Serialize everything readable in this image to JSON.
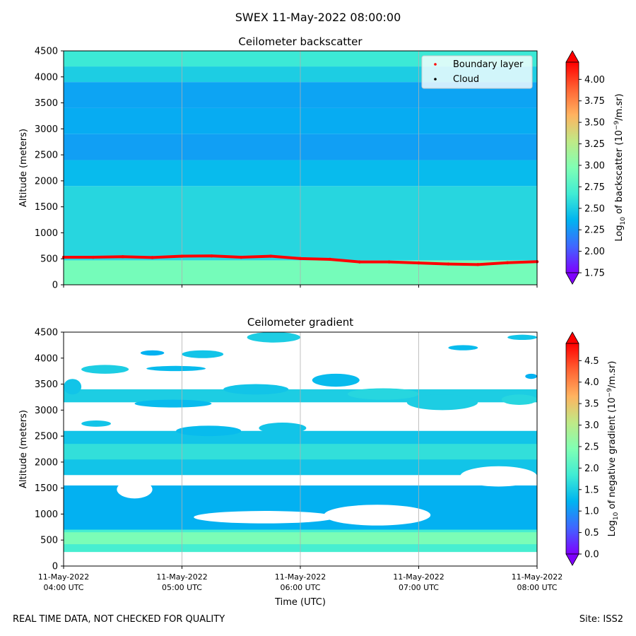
{
  "suptitle": "SWEX 11-May-2022 08:00:00",
  "footer": {
    "left": "REAL TIME DATA, NOT CHECKED FOR QUALITY",
    "right": "Site: ISS2"
  },
  "colors": {
    "rainbow_stops": [
      "#7f00ff",
      "#4066ff",
      "#00b4f0",
      "#40ecd4",
      "#80ffb4",
      "#c0e986",
      "#ffb360",
      "#ff6232",
      "#ff0000"
    ],
    "boundary_layer": "#ff0000",
    "cloud": "#000000",
    "grid": "#b0b0b0"
  },
  "chart_data": [
    {
      "type": "heatmap",
      "title": "Ceilometer backscatter",
      "ylabel": "Altitude (meters)",
      "ylim": [
        0,
        4500
      ],
      "yticks": [
        "0",
        "500",
        "1000",
        "1500",
        "2000",
        "2500",
        "3000",
        "3500",
        "4000",
        "4500"
      ],
      "xlim": [
        0,
        4
      ],
      "colorbar": {
        "label_pre": "Log",
        "label_sub": "10",
        "label_post": " of backscatter (10",
        "label_sup": "−9",
        "label_end": "/m.sr)",
        "vmin": 1.75,
        "vmax": 4.2,
        "ticks": [
          "1.75",
          "2.00",
          "2.25",
          "2.50",
          "2.75",
          "3.00",
          "3.25",
          "3.50",
          "3.75",
          "4.00"
        ]
      },
      "legend": {
        "position": "top-right",
        "entries": [
          "Boundary layer",
          "Cloud"
        ]
      },
      "boundary_layer": {
        "x": [
          0,
          0.25,
          0.5,
          0.75,
          1.0,
          1.25,
          1.5,
          1.75,
          2.0,
          2.25,
          2.5,
          2.75,
          3.0,
          3.25,
          3.5,
          3.75,
          4.0
        ],
        "y": [
          530,
          530,
          540,
          525,
          550,
          555,
          530,
          550,
          505,
          490,
          440,
          440,
          420,
          400,
          390,
          425,
          445
        ]
      },
      "layers": [
        {
          "top": 470,
          "value": 2.92
        },
        {
          "top": 1900,
          "value": 2.55
        },
        {
          "top": 2400,
          "value": 2.4
        },
        {
          "top": 2900,
          "value": 2.28
        },
        {
          "top": 3400,
          "value": 2.33
        },
        {
          "top": 3900,
          "value": 2.3
        },
        {
          "top": 4200,
          "value": 2.5
        },
        {
          "top": 4500,
          "value": 2.65
        }
      ]
    },
    {
      "type": "heatmap",
      "title": "Ceilometer gradient",
      "ylabel": "Altitude (meters)",
      "xlabel": "Time (UTC)",
      "ylim": [
        0,
        4500
      ],
      "yticks": [
        "0",
        "500",
        "1000",
        "1500",
        "2000",
        "2500",
        "3000",
        "3500",
        "4000",
        "4500"
      ],
      "xlim": [
        0,
        4
      ],
      "xticks": [
        {
          "line1": "11-May-2022",
          "line2": "04:00 UTC"
        },
        {
          "line1": "11-May-2022",
          "line2": "05:00 UTC"
        },
        {
          "line1": "11-May-2022",
          "line2": "06:00 UTC"
        },
        {
          "line1": "11-May-2022",
          "line2": "07:00 UTC"
        },
        {
          "line1": "11-May-2022",
          "line2": "08:00 UTC"
        }
      ],
      "colorbar": {
        "label_pre": "Log",
        "label_sub": "10",
        "label_post": " of negative gradient (10",
        "label_sup": "−9",
        "label_end": "/m.sr)",
        "vmin": 0,
        "vmax": 4.9,
        "ticks": [
          "0.0",
          "0.5",
          "1.0",
          "1.5",
          "2.0",
          "2.5",
          "3.0",
          "3.5",
          "4.0",
          "4.5"
        ]
      },
      "bands": [
        {
          "bottom": 270,
          "top": 850,
          "value": 1.9
        },
        {
          "bottom": 420,
          "top": 650,
          "value": 2.4
        },
        {
          "bottom": 700,
          "top": 1550,
          "value": 1.2
        },
        {
          "bottom": 1750,
          "top": 2600,
          "value": 1.4
        },
        {
          "bottom": 2050,
          "top": 2350,
          "value": 1.7
        },
        {
          "bottom": 3150,
          "top": 3400,
          "value": 1.5
        }
      ],
      "gaps": [
        {
          "x0": 1.1,
          "x1": 2.3,
          "bottom": 820,
          "top": 1060
        },
        {
          "x0": 2.2,
          "x1": 3.1,
          "bottom": 780,
          "top": 1180
        },
        {
          "x0": 0.45,
          "x1": 0.75,
          "bottom": 1300,
          "top": 1650
        },
        {
          "x0": 3.35,
          "x1": 4.0,
          "bottom": 1530,
          "top": 1920
        }
      ],
      "blobs": [
        {
          "x0": 0.15,
          "x1": 0.55,
          "y0": 3700,
          "y1": 3870,
          "value": 1.5
        },
        {
          "x0": 0.7,
          "x1": 1.2,
          "y0": 3750,
          "y1": 3850,
          "value": 1.3
        },
        {
          "x0": 1.0,
          "x1": 1.35,
          "y0": 4000,
          "y1": 4150,
          "value": 1.4
        },
        {
          "x0": 1.55,
          "x1": 2.0,
          "y0": 4300,
          "y1": 4500,
          "value": 1.5
        },
        {
          "x0": 1.35,
          "x1": 1.9,
          "y0": 3300,
          "y1": 3500,
          "value": 1.4
        },
        {
          "x0": 2.1,
          "x1": 2.5,
          "y0": 3450,
          "y1": 3700,
          "value": 1.3
        },
        {
          "x0": 2.4,
          "x1": 3.0,
          "y0": 3200,
          "y1": 3420,
          "value": 1.6
        },
        {
          "x0": 2.9,
          "x1": 3.5,
          "y0": 3000,
          "y1": 3300,
          "value": 1.5
        },
        {
          "x0": 3.7,
          "x1": 4.0,
          "y0": 3100,
          "y1": 3300,
          "value": 1.6
        },
        {
          "x0": 0.6,
          "x1": 1.25,
          "y0": 3050,
          "y1": 3200,
          "value": 1.3
        },
        {
          "x0": 0.15,
          "x1": 0.4,
          "y0": 2680,
          "y1": 2800,
          "value": 1.4
        },
        {
          "x0": 0.95,
          "x1": 1.5,
          "y0": 2500,
          "y1": 2700,
          "value": 1.3
        },
        {
          "x0": 1.65,
          "x1": 2.05,
          "y0": 2550,
          "y1": 2760,
          "value": 1.4
        },
        {
          "x0": 0.0,
          "x1": 0.15,
          "y0": 3300,
          "y1": 3600,
          "value": 1.4
        },
        {
          "x0": 0.65,
          "x1": 0.85,
          "y0": 4050,
          "y1": 4150,
          "value": 1.2
        },
        {
          "x0": 3.25,
          "x1": 3.5,
          "y0": 4150,
          "y1": 4250,
          "value": 1.3
        },
        {
          "x0": 3.75,
          "x1": 4.0,
          "y0": 4350,
          "y1": 4450,
          "value": 1.4
        },
        {
          "x0": 3.9,
          "x1": 4.0,
          "y0": 3600,
          "y1": 3700,
          "value": 1.2
        }
      ]
    }
  ]
}
